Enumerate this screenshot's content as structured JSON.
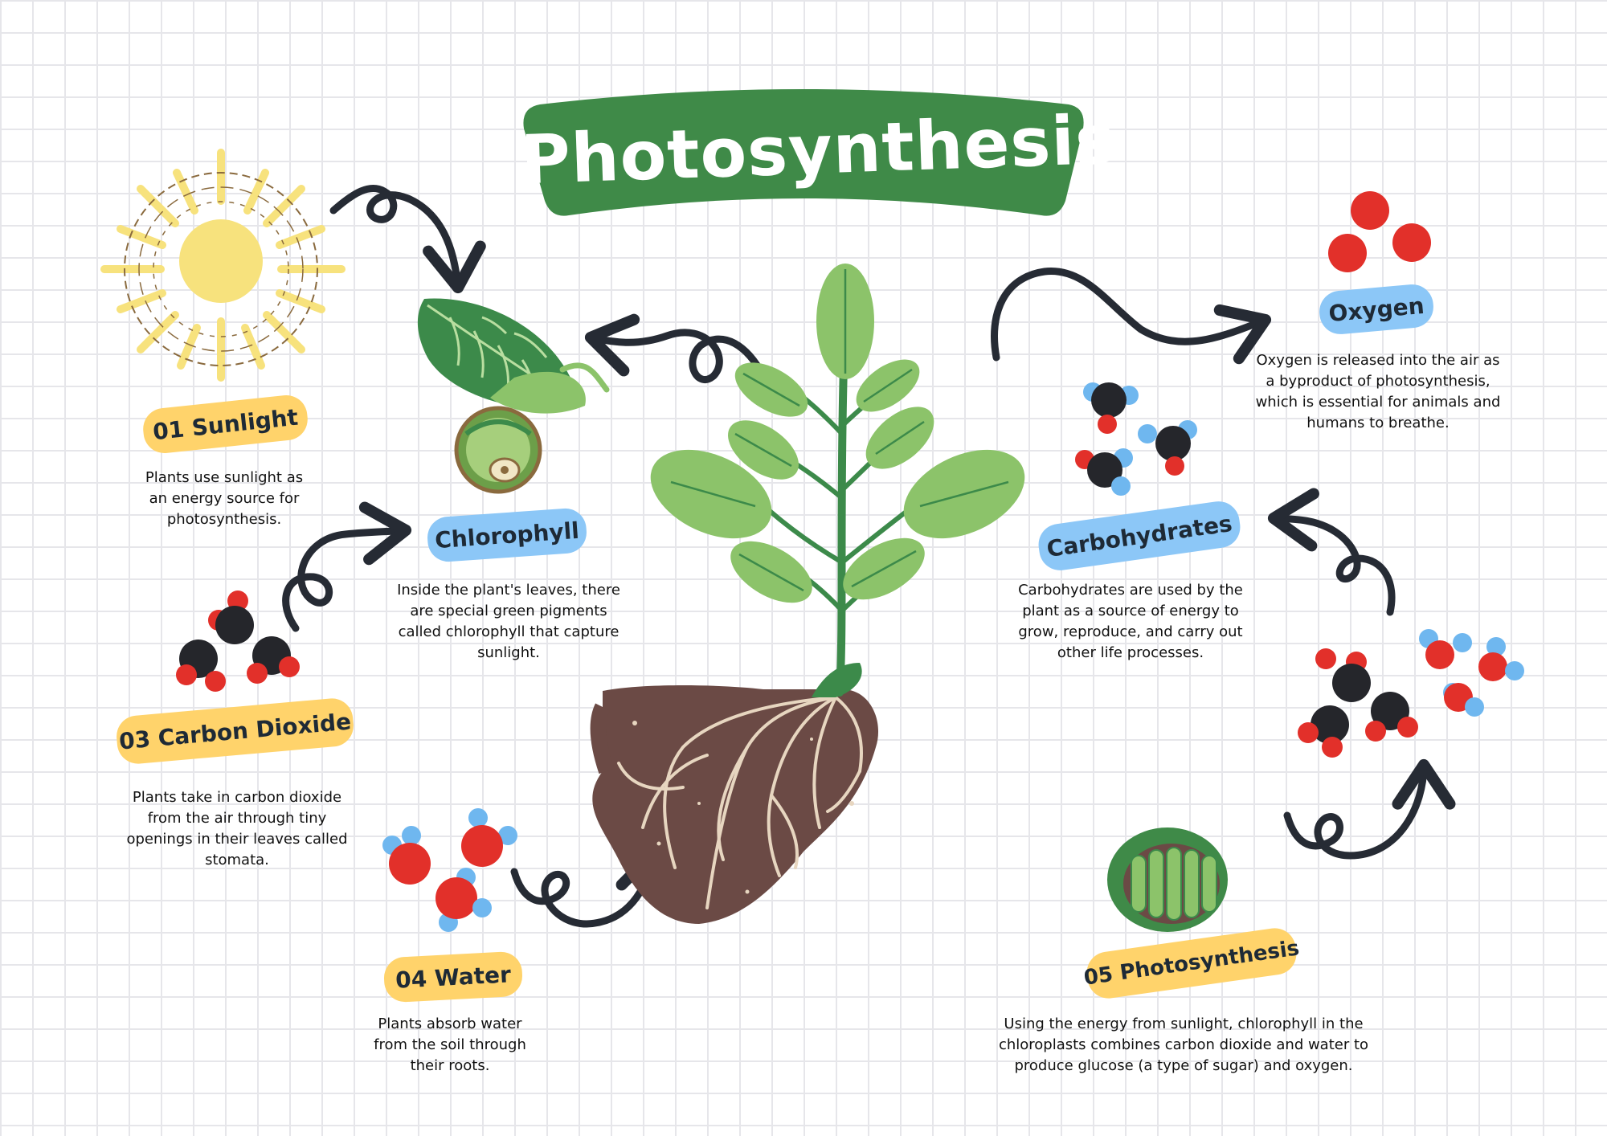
{
  "title": "Photosynthesis",
  "steps": {
    "sunlight": {
      "label": "01 Sunlight",
      "text": "Plants use sunlight as an energy source for photosynthesis."
    },
    "chlorophyll": {
      "label": "Chlorophyll",
      "text": "Inside the plant's leaves, there are special green pigments called chlorophyll that capture sunlight."
    },
    "carbon_dioxide": {
      "label": "03 Carbon Dioxide",
      "text": "Plants take in carbon dioxide from the air through tiny openings in their leaves called stomata."
    },
    "water": {
      "label": "04 Water",
      "text": "Plants absorb water from the soil through their roots."
    },
    "photosynthesis": {
      "label": "05 Photosynthesis",
      "text": "Using the energy from sunlight, chlorophyll in the chloroplasts combines carbon dioxide and water to produce glucose (a type of sugar) and oxygen."
    },
    "carbohydrates": {
      "label": "Carbohydrates",
      "text": "Carbohydrates are used by the plant as a source of energy to grow, reproduce, and carry out other life processes."
    },
    "oxygen": {
      "label": "Oxygen",
      "text": "Oxygen is released into the air as a byproduct of photosynthesis, which is essential for animals and humans to breathe."
    }
  },
  "colors": {
    "banner_green": "#3f8a48",
    "pill_yellow": "#ffd36b",
    "pill_blue": "#8cc7f7",
    "arrow": "#262b34",
    "leaf_light": "#8cc36a",
    "leaf_dark": "#3c8a4a",
    "soil": "#6b4a45",
    "atom_red": "#e2302a",
    "atom_black": "#25262b",
    "atom_blue": "#6fb7ef",
    "sun_yellow": "#f7e27d"
  }
}
